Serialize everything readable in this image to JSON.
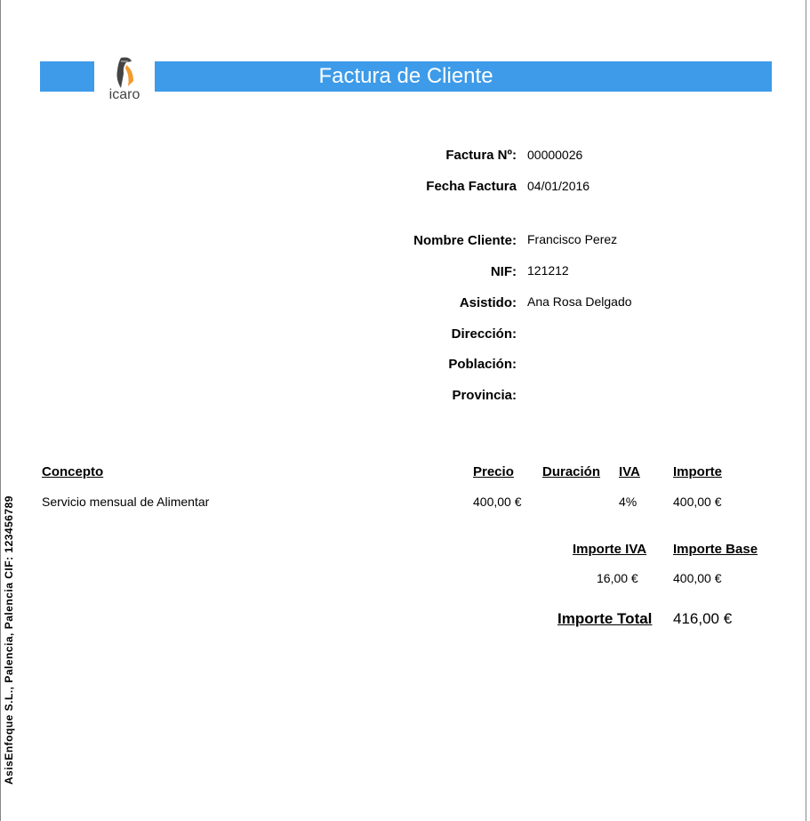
{
  "header": {
    "title": "Factura de Cliente",
    "brand_color": "#3d9be9",
    "logo_text": "icaro"
  },
  "invoice": {
    "fields": [
      {
        "label": "Factura Nº:",
        "value": "00000026"
      },
      {
        "label": "Fecha Factura",
        "value": "04/01/2016"
      },
      {
        "label": "Nombre Cliente:",
        "value": "Francisco Perez"
      },
      {
        "label": "NIF:",
        "value": "121212"
      },
      {
        "label": "Asistido:",
        "value": "Ana Rosa Delgado"
      },
      {
        "label": "Dirección:",
        "value": ""
      },
      {
        "label": "Población:",
        "value": ""
      },
      {
        "label": "Provincia:",
        "value": ""
      }
    ]
  },
  "table": {
    "headers": {
      "concepto": "Concepto",
      "precio": "Precio",
      "duracion": "Duración",
      "iva": "IVA",
      "importe": "Importe"
    },
    "rows": [
      {
        "concepto": "Servicio mensual de Alimentar",
        "precio": "400,00 €",
        "duracion": "",
        "iva": "4%",
        "importe": "400,00 €"
      }
    ]
  },
  "totals": {
    "iva_label": "Importe IVA",
    "base_label": "Importe Base",
    "iva_value": "16,00 €",
    "base_value": "400,00 €",
    "total_label": "Importe Total",
    "total_value": "416,00 €"
  },
  "footer": {
    "company": "AsisEnfoque S.L., Palencia, Palencia CIF: 123456789"
  }
}
